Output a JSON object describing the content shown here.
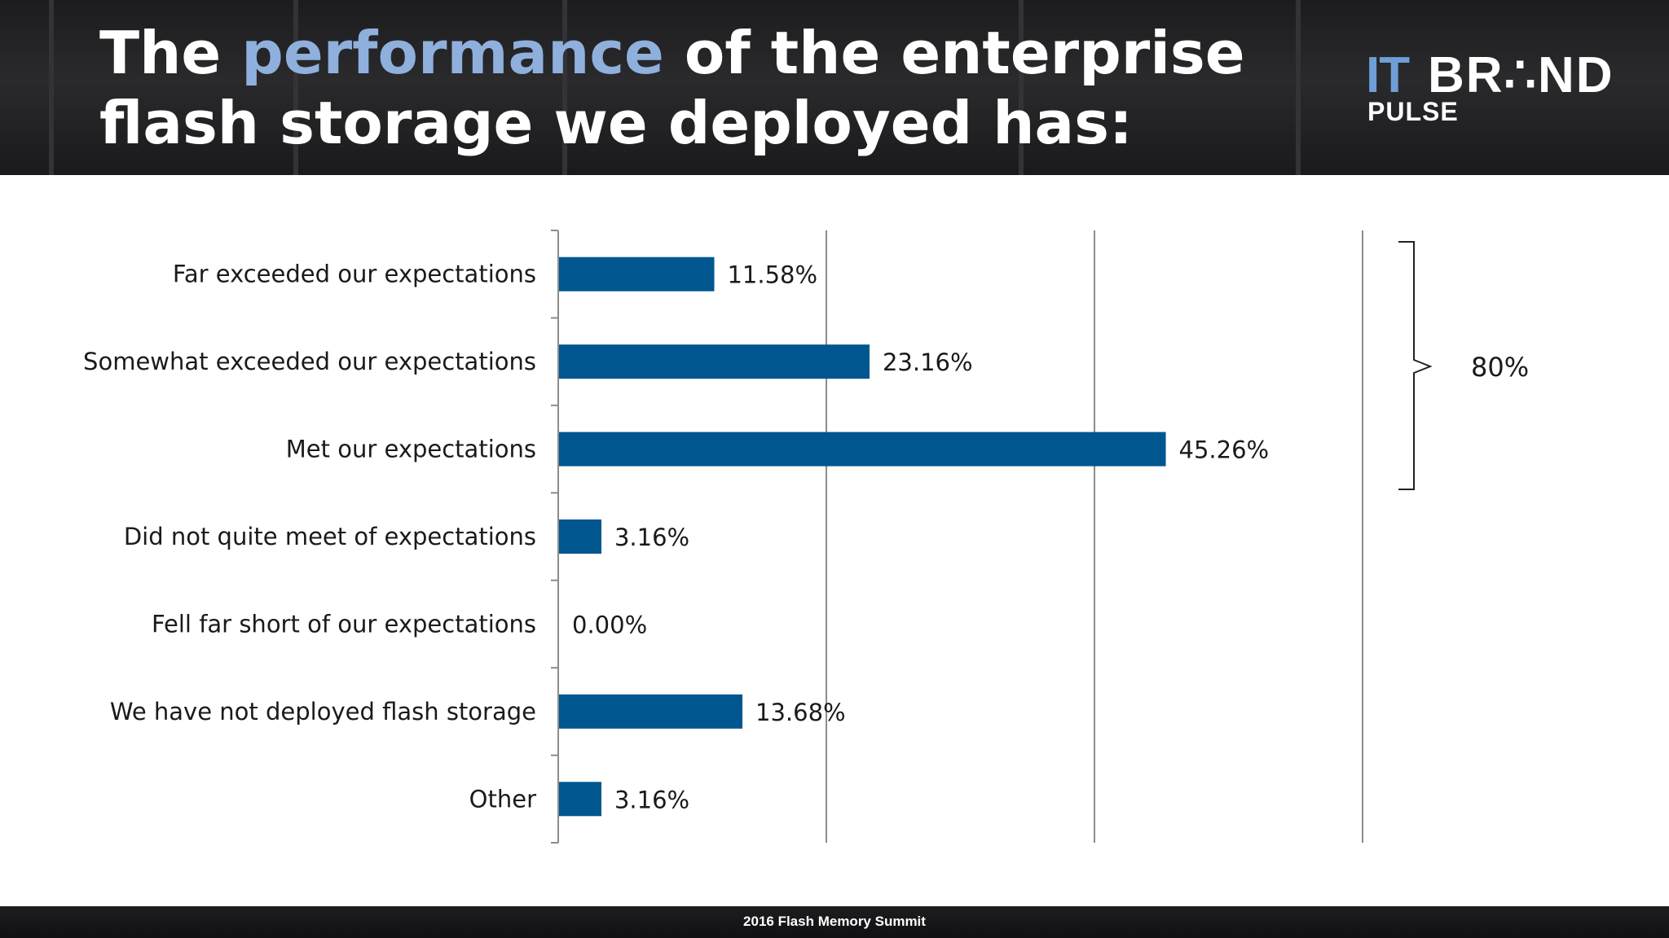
{
  "header": {
    "title_part1": "The ",
    "title_accent": "performance",
    "title_part2": " of the enterprise",
    "title_line2": "flash storage we deployed has:"
  },
  "logo": {
    "it": "IT",
    "brand": "BR∴ND",
    "pulse": "PULSE"
  },
  "footer": {
    "text": "2016 Flash Memory Summit"
  },
  "colors": {
    "bar": "#00568f",
    "title_accent": "#8fb0dc",
    "header_bg": "#202022"
  },
  "bracket": {
    "label": "80%"
  },
  "chart_data": {
    "type": "bar",
    "orientation": "horizontal",
    "categories": [
      "Far exceeded our expectations",
      "Somewhat exceeded our expectations",
      "Met our expectations",
      "Did not quite meet of expectations",
      "Fell far short of our expectations",
      "We have not deployed flash storage",
      "Other"
    ],
    "values": [
      11.58,
      23.16,
      45.26,
      3.16,
      0.0,
      13.68,
      3.16
    ],
    "data_labels": [
      "11.58%",
      "23.16%",
      "45.26%",
      "3.16%",
      "0.00%",
      "13.68%",
      "3.16%"
    ],
    "xlim": [
      0,
      60
    ],
    "gridlines_at": [
      20,
      40,
      60
    ],
    "grid": true,
    "legend": "none"
  }
}
